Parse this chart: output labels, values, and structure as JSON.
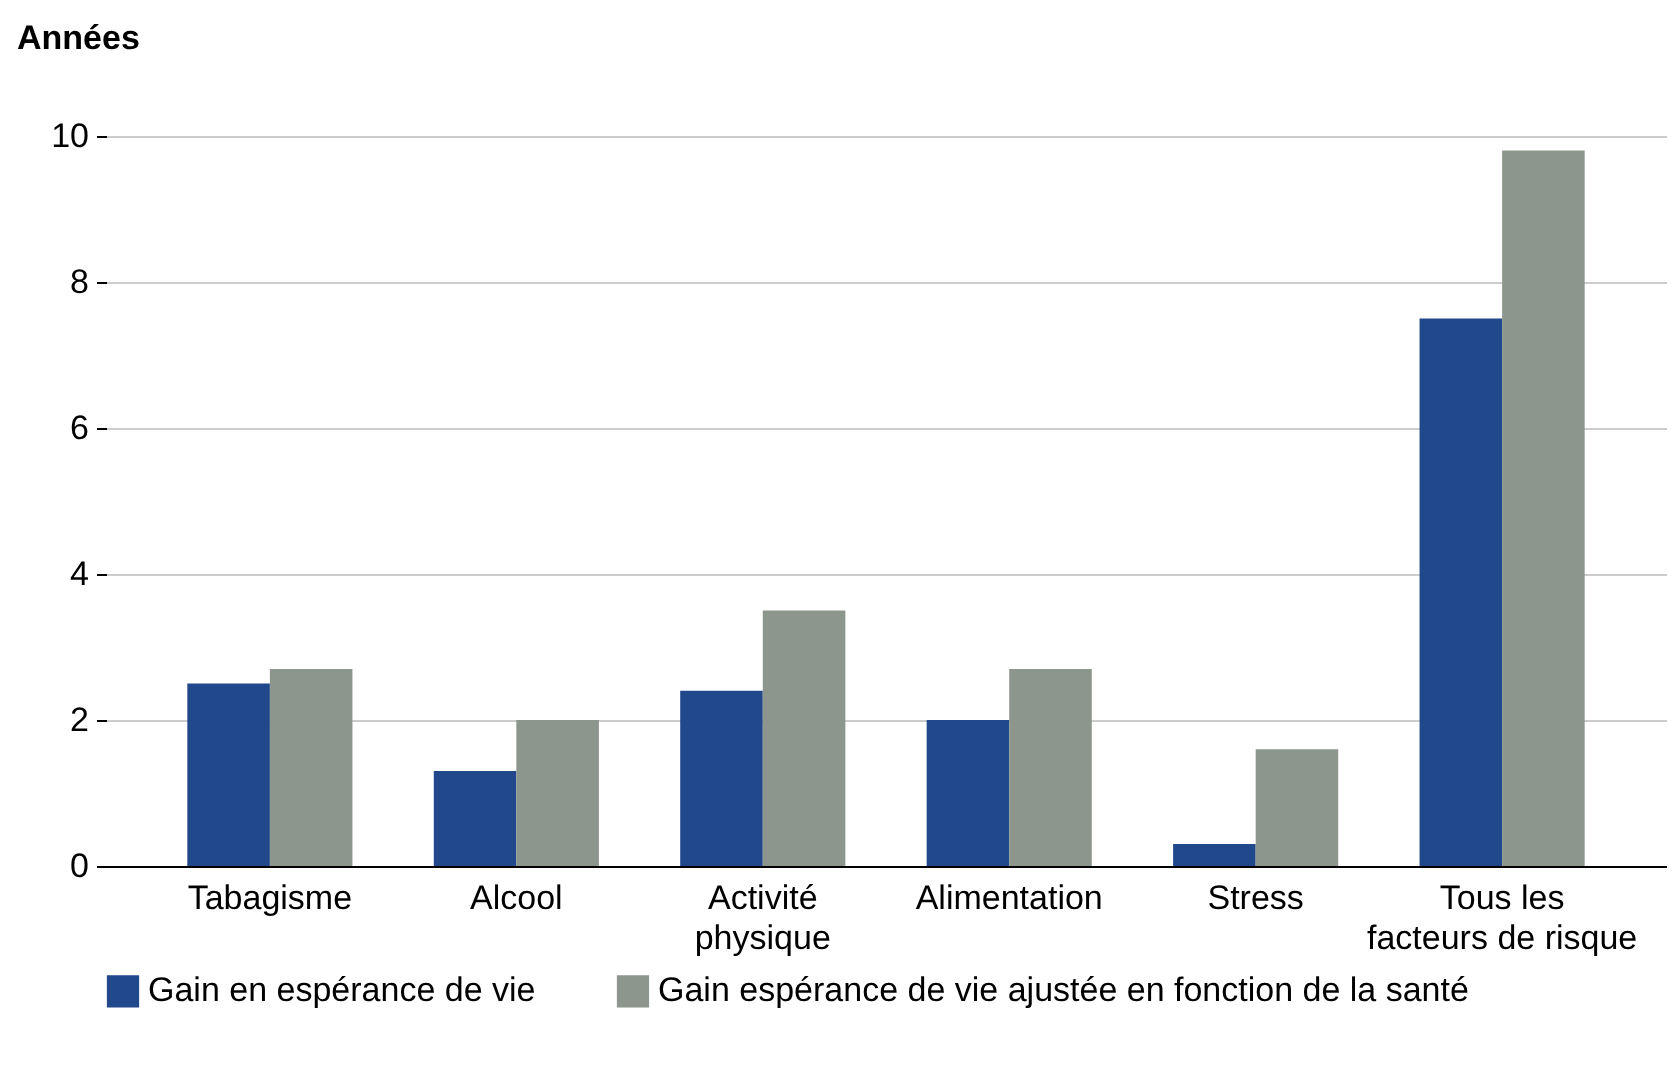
{
  "chart_data": {
    "type": "bar",
    "ylabel": "Années",
    "categories": [
      "Tabagisme",
      "Alcool",
      "Activité\nphysique",
      "Alimentation",
      "Stress",
      "Tous les\nfacteurs de risque"
    ],
    "series": [
      {
        "name": "Gain en espérance de vie",
        "color": "#21488b",
        "values": [
          2.5,
          1.3,
          2.4,
          2.0,
          0.3,
          7.5
        ]
      },
      {
        "name": "Gain espérance de vie ajustée en fonction de la santé",
        "color": "#8d968c",
        "values": [
          2.7,
          2.0,
          3.5,
          2.7,
          1.6,
          9.8
        ]
      }
    ],
    "ylim": [
      0,
      10
    ],
    "yticks": [
      0,
      2,
      4,
      6,
      8,
      10
    ],
    "grid": "y",
    "legend": "bottom"
  }
}
